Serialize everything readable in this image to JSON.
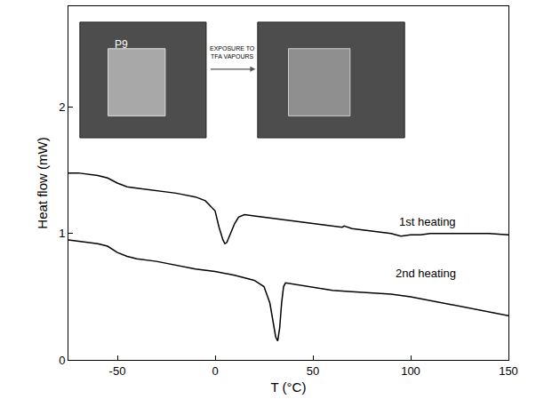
{
  "chart_data": {
    "type": "line",
    "x_label": "T (°C)",
    "y_label": "Heat flow (mW)",
    "xlim": [
      -75,
      150
    ],
    "xticks": [
      -50,
      0,
      50,
      100,
      150
    ],
    "ylim": [
      0,
      2.8
    ],
    "yticks": [
      0,
      1,
      2
    ],
    "grid": false,
    "series": [
      {
        "name": "1st heating",
        "color": "#000000",
        "x": [
          -75,
          -70,
          -60,
          -55,
          -50,
          -45,
          -40,
          -30,
          -20,
          -10,
          -5,
          0,
          2,
          4,
          5,
          6,
          8,
          10,
          12,
          15,
          20,
          30,
          40,
          50,
          60,
          65,
          66,
          70,
          80,
          90,
          95,
          100,
          105,
          110,
          120,
          130,
          140,
          150
        ],
        "values": [
          1.48,
          1.48,
          1.46,
          1.44,
          1.4,
          1.37,
          1.36,
          1.34,
          1.32,
          1.29,
          1.26,
          1.18,
          1.05,
          0.95,
          0.92,
          0.93,
          1.0,
          1.08,
          1.13,
          1.15,
          1.14,
          1.12,
          1.1,
          1.08,
          1.06,
          1.05,
          1.06,
          1.04,
          1.02,
          1.0,
          0.98,
          0.99,
          0.99,
          1.0,
          1.0,
          1.0,
          1.0,
          0.99
        ]
      },
      {
        "name": "2nd heating",
        "color": "#000000",
        "x": [
          -75,
          -70,
          -60,
          -55,
          -50,
          -45,
          -40,
          -30,
          -20,
          -10,
          0,
          10,
          20,
          25,
          28,
          30,
          31,
          32,
          33,
          34,
          35,
          36,
          40,
          50,
          60,
          70,
          80,
          90,
          100,
          110,
          120,
          130,
          140,
          150
        ],
        "values": [
          0.95,
          0.94,
          0.92,
          0.9,
          0.85,
          0.82,
          0.8,
          0.78,
          0.75,
          0.72,
          0.7,
          0.67,
          0.63,
          0.58,
          0.45,
          0.28,
          0.18,
          0.15,
          0.25,
          0.45,
          0.58,
          0.61,
          0.6,
          0.57,
          0.55,
          0.54,
          0.53,
          0.52,
          0.5,
          0.47,
          0.44,
          0.41,
          0.38,
          0.35
        ]
      }
    ],
    "annotations": [
      "P9",
      "EXPOSURE TO TFA VAPOURS"
    ]
  }
}
